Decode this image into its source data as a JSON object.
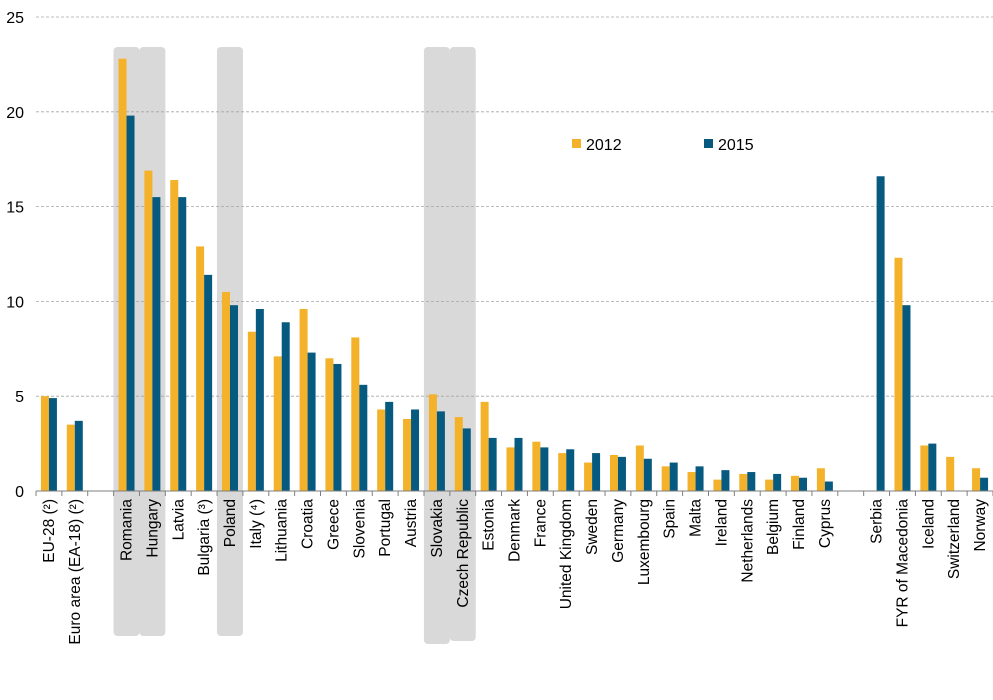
{
  "chart_data": {
    "type": "bar",
    "title": "",
    "xlabel": "",
    "ylabel": "",
    "ylim": [
      0,
      25
    ],
    "yticks": [
      0,
      5,
      10,
      15,
      20,
      25
    ],
    "grid": true,
    "legend_placement": "top-center",
    "categories": [
      "EU-28 (²)",
      "Euro area (EA-18) (²)",
      "",
      "Romania",
      "Hungary",
      "Latvia",
      "Bulgaria (³)",
      "Poland",
      "Italy (⁴)",
      "Lithuania",
      "Croatia",
      "Greece",
      "Slovenia",
      "Portugal",
      "Austria",
      "Slovakia",
      "Czech Republic",
      "Estonia",
      "Denmark",
      "France",
      "United Kingdom",
      "Sweden",
      "Germany",
      "Luxembourg",
      "Spain",
      "Malta",
      "Ireland",
      "Netherlands",
      "Belgium",
      "Finland",
      "Cyprus",
      "",
      "Serbia",
      "FYR of Macedonia",
      "Iceland",
      "Switzerland",
      "Norway"
    ],
    "highlighted": [
      "Romania",
      "Hungary",
      "Poland",
      "Slovakia",
      "Czech Republic"
    ],
    "series": [
      {
        "name": "2012",
        "values": [
          5.0,
          3.5,
          null,
          22.8,
          16.9,
          16.4,
          12.9,
          10.5,
          8.4,
          7.1,
          9.6,
          7.0,
          8.1,
          4.3,
          3.8,
          5.1,
          3.9,
          4.7,
          2.3,
          2.6,
          2.0,
          1.5,
          1.9,
          2.4,
          1.3,
          1.0,
          0.6,
          0.9,
          0.6,
          0.8,
          1.2,
          null,
          null,
          12.3,
          2.4,
          1.8,
          1.2
        ]
      },
      {
        "name": "2015",
        "values": [
          4.9,
          3.7,
          null,
          19.8,
          15.5,
          15.5,
          11.4,
          9.8,
          9.6,
          8.9,
          7.3,
          6.7,
          5.6,
          4.7,
          4.3,
          4.2,
          3.3,
          2.8,
          2.8,
          2.3,
          2.2,
          2.0,
          1.8,
          1.7,
          1.5,
          1.3,
          1.1,
          1.0,
          0.9,
          0.7,
          0.5,
          null,
          16.6,
          9.8,
          2.5,
          null,
          0.7
        ]
      }
    ],
    "colors": {
      "2012": "#f4b12a",
      "2015": "#075a7f",
      "highlight": "#d9d9d9",
      "grid": "#a6a6a6",
      "axis": "#7f7f7f"
    }
  }
}
